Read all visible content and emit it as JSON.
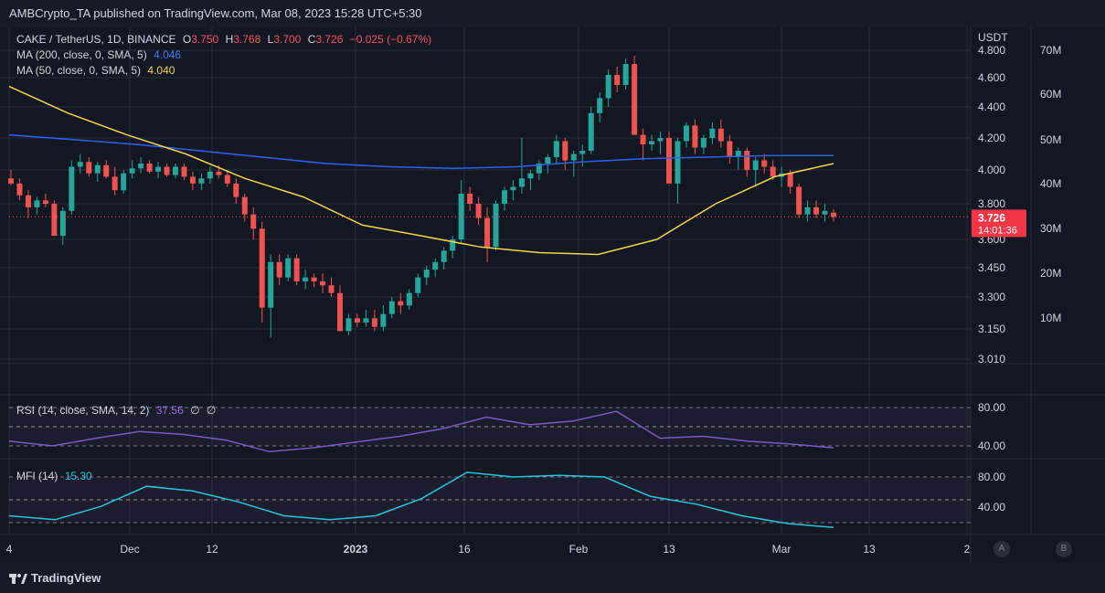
{
  "header": {
    "published_text": "AMBCrypto_TA published on TradingView.com, Mar 08, 2023 15:28 UTC+5:30"
  },
  "legend": {
    "symbol": "CAKE / TetherUS, 1D, BINANCE",
    "o_label": "O",
    "o_value": "3.750",
    "h_label": "H",
    "h_value": "3.768",
    "l_label": "L",
    "l_value": "3.700",
    "c_label": "C",
    "c_value": "3.726",
    "change": "−0.025 (−0.67%)",
    "ma200_label": "MA (200, close, 0, SMA, 5)",
    "ma200_value": "4.046",
    "ma50_label": "MA (50, close, 0, SMA, 5)",
    "ma50_value": "4.040",
    "rsi_label": "RSI (14, close, SMA, 14, 2)",
    "rsi_value": "37.56",
    "rsi_extra1": "∅",
    "rsi_extra2": "∅",
    "mfi_label": "MFI (14)",
    "mfi_value": "15.30"
  },
  "price_axis": {
    "currency": "USDT",
    "last_price": "3.726",
    "countdown": "14:01:36"
  },
  "footer": {
    "brand": "TradingView",
    "btn_a": "A",
    "btn_b": "B"
  },
  "colors": {
    "up": "#26a69a",
    "down": "#ef5350",
    "ma200": "#2962ff",
    "ma50": "#f0d44a",
    "rsi": "#7e57c2",
    "mfi": "#26c6da",
    "bg": "#131722"
  },
  "chart_data": {
    "type": "candlestick",
    "title": "CAKE / TetherUS, 1D, BINANCE",
    "price_ticks": [
      "4.800",
      "4.600",
      "4.400",
      "4.200",
      "4.000",
      "3.800",
      "3.600",
      "3.450",
      "3.300",
      "3.150",
      "3.010"
    ],
    "volume_ticks": [
      "70M",
      "60M",
      "50M",
      "40M",
      "30M",
      "20M",
      "10M"
    ],
    "time_ticks": [
      "4",
      "Dec",
      "12",
      "2023",
      "16",
      "Feb",
      "13",
      "Mar",
      "13",
      "2"
    ],
    "rsi_ticks": [
      "80.00",
      "40.00"
    ],
    "mfi_ticks": [
      "80.00",
      "40.00"
    ],
    "candles_ohlc": [
      [
        3.95,
        4.0,
        3.91,
        3.92
      ],
      [
        3.92,
        3.95,
        3.82,
        3.85
      ],
      [
        3.85,
        3.88,
        3.72,
        3.78
      ],
      [
        3.78,
        3.84,
        3.74,
        3.82
      ],
      [
        3.82,
        3.86,
        3.78,
        3.8
      ],
      [
        3.8,
        3.82,
        3.65,
        3.62
      ],
      [
        3.62,
        3.78,
        3.57,
        3.76
      ],
      [
        3.76,
        4.06,
        3.74,
        4.02
      ],
      [
        4.02,
        4.1,
        3.98,
        4.05
      ],
      [
        4.05,
        4.08,
        3.96,
        3.98
      ],
      [
        3.98,
        4.05,
        3.93,
        4.03
      ],
      [
        4.03,
        4.06,
        3.95,
        3.96
      ],
      [
        3.96,
        4.02,
        3.85,
        3.88
      ],
      [
        3.88,
        4.0,
        3.86,
        3.98
      ],
      [
        3.98,
        4.06,
        3.95,
        4.01
      ],
      [
        4.01,
        4.08,
        3.98,
        4.04
      ],
      [
        4.04,
        4.06,
        3.98,
        3.99
      ],
      [
        3.99,
        4.05,
        3.95,
        4.02
      ],
      [
        4.02,
        4.04,
        3.96,
        3.97
      ],
      [
        3.97,
        4.04,
        3.95,
        4.02
      ],
      [
        4.02,
        4.04,
        3.94,
        3.96
      ],
      [
        3.96,
        3.99,
        3.88,
        3.92
      ],
      [
        3.92,
        3.98,
        3.88,
        3.95
      ],
      [
        3.95,
        4.02,
        3.92,
        3.99
      ],
      [
        3.99,
        4.03,
        3.95,
        3.97
      ],
      [
        3.97,
        4.0,
        3.9,
        3.92
      ],
      [
        3.92,
        3.95,
        3.8,
        3.84
      ],
      [
        3.84,
        3.86,
        3.7,
        3.74
      ],
      [
        3.74,
        3.78,
        3.6,
        3.66
      ],
      [
        3.66,
        3.7,
        3.18,
        3.25
      ],
      [
        3.25,
        3.52,
        3.11,
        3.48
      ],
      [
        3.48,
        3.52,
        3.36,
        3.4
      ],
      [
        3.4,
        3.52,
        3.38,
        3.5
      ],
      [
        3.5,
        3.52,
        3.36,
        3.38
      ],
      [
        3.38,
        3.44,
        3.34,
        3.4
      ],
      [
        3.4,
        3.42,
        3.35,
        3.38
      ],
      [
        3.38,
        3.42,
        3.32,
        3.36
      ],
      [
        3.36,
        3.4,
        3.3,
        3.32
      ],
      [
        3.32,
        3.36,
        3.2,
        3.14
      ],
      [
        3.14,
        3.22,
        3.12,
        3.2
      ],
      [
        3.2,
        3.22,
        3.16,
        3.18
      ],
      [
        3.18,
        3.24,
        3.16,
        3.2
      ],
      [
        3.2,
        3.24,
        3.14,
        3.16
      ],
      [
        3.16,
        3.26,
        3.14,
        3.22
      ],
      [
        3.22,
        3.3,
        3.2,
        3.28
      ],
      [
        3.28,
        3.32,
        3.22,
        3.26
      ],
      [
        3.26,
        3.34,
        3.24,
        3.32
      ],
      [
        3.32,
        3.42,
        3.3,
        3.4
      ],
      [
        3.4,
        3.46,
        3.36,
        3.44
      ],
      [
        3.44,
        3.5,
        3.4,
        3.48
      ],
      [
        3.48,
        3.56,
        3.44,
        3.54
      ],
      [
        3.54,
        3.62,
        3.5,
        3.6
      ],
      [
        3.6,
        3.94,
        3.58,
        3.86
      ],
      [
        3.86,
        3.9,
        3.76,
        3.8
      ],
      [
        3.8,
        3.84,
        3.68,
        3.72
      ],
      [
        3.72,
        3.78,
        3.48,
        3.56
      ],
      [
        3.56,
        3.82,
        3.54,
        3.8
      ],
      [
        3.8,
        3.9,
        3.76,
        3.88
      ],
      [
        3.88,
        3.94,
        3.82,
        3.9
      ],
      [
        3.9,
        4.2,
        3.86,
        3.95
      ],
      [
        3.95,
        4.0,
        3.88,
        3.98
      ],
      [
        3.98,
        4.06,
        3.94,
        4.04
      ],
      [
        4.04,
        4.1,
        3.98,
        4.08
      ],
      [
        4.08,
        4.22,
        4.04,
        4.18
      ],
      [
        4.18,
        4.2,
        4.0,
        4.06
      ],
      [
        4.06,
        4.12,
        3.96,
        4.1
      ],
      [
        4.1,
        4.16,
        4.02,
        4.12
      ],
      [
        4.12,
        4.4,
        4.1,
        4.36
      ],
      [
        4.36,
        4.5,
        4.3,
        4.46
      ],
      [
        4.46,
        4.66,
        4.4,
        4.62
      ],
      [
        4.62,
        4.68,
        4.5,
        4.55
      ],
      [
        4.55,
        4.74,
        4.52,
        4.7
      ],
      [
        4.7,
        4.76,
        4.4,
        4.22
      ],
      [
        4.22,
        4.26,
        4.06,
        4.16
      ],
      [
        4.16,
        4.22,
        4.12,
        4.18
      ],
      [
        4.18,
        4.24,
        4.1,
        4.2
      ],
      [
        4.2,
        4.24,
        3.92,
        3.92
      ],
      [
        3.92,
        4.2,
        3.8,
        4.18
      ],
      [
        4.18,
        4.3,
        4.14,
        4.28
      ],
      [
        4.28,
        4.32,
        4.1,
        4.14
      ],
      [
        4.14,
        4.22,
        4.1,
        4.2
      ],
      [
        4.2,
        4.3,
        4.16,
        4.26
      ],
      [
        4.26,
        4.32,
        4.14,
        4.18
      ],
      [
        4.18,
        4.22,
        4.04,
        4.08
      ],
      [
        4.08,
        4.14,
        4.0,
        4.12
      ],
      [
        4.12,
        4.14,
        3.96,
        4.0
      ],
      [
        4.0,
        4.08,
        3.9,
        4.06
      ],
      [
        4.06,
        4.1,
        3.98,
        4.02
      ],
      [
        4.02,
        4.06,
        3.94,
        3.96
      ],
      [
        3.96,
        4.02,
        3.9,
        3.98
      ],
      [
        3.98,
        4.0,
        3.86,
        3.9
      ],
      [
        3.9,
        3.92,
        3.72,
        3.74
      ],
      [
        3.74,
        3.82,
        3.7,
        3.78
      ],
      [
        3.78,
        3.82,
        3.72,
        3.74
      ],
      [
        3.74,
        3.8,
        3.7,
        3.76
      ],
      [
        3.75,
        3.77,
        3.7,
        3.726
      ]
    ],
    "ma200": [
      4.22,
      4.19,
      4.16,
      4.12,
      4.08,
      4.04,
      4.02,
      4.01,
      4.02,
      4.05,
      4.07,
      4.08,
      4.09,
      4.09
    ],
    "ma50": [
      4.54,
      4.36,
      4.22,
      4.1,
      3.95,
      3.84,
      3.68,
      3.62,
      3.56,
      3.53,
      3.52,
      3.6,
      3.8,
      3.96,
      4.04
    ],
    "rsi": [
      45,
      40,
      48,
      55,
      52,
      46,
      34,
      38,
      44,
      50,
      58,
      70,
      62,
      66,
      76,
      48,
      50,
      45,
      42,
      38
    ],
    "mfi": [
      30,
      25,
      42,
      68,
      62,
      48,
      30,
      25,
      30,
      52,
      86,
      80,
      82,
      80,
      55,
      45,
      30,
      20,
      15
    ]
  }
}
